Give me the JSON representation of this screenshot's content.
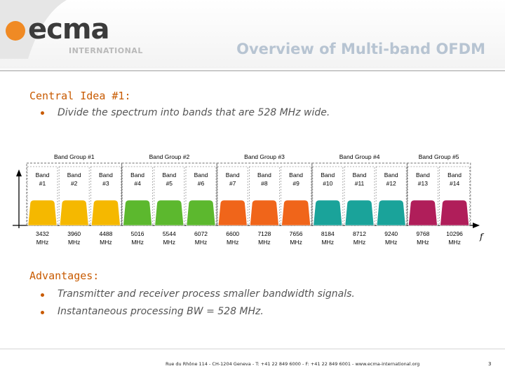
{
  "header": {
    "logo_text": "ecma",
    "logo_subtitle": "INTERNATIONAL",
    "title": "Overview of Multi-band OFDM"
  },
  "section1": {
    "heading": "Central Idea #1:",
    "bullets": [
      "Divide the spectrum into bands that are 528 MHz wide."
    ]
  },
  "figure": {
    "band_groups": [
      "Band Group #1",
      "Band Group #2",
      "Band Group #3",
      "Band Group #4",
      "Band Group #5"
    ],
    "bands": [
      {
        "name": "Band",
        "num": "#1",
        "freq": "3432",
        "unit": "MHz",
        "color": "#f5b800"
      },
      {
        "name": "Band",
        "num": "#2",
        "freq": "3960",
        "unit": "MHz",
        "color": "#f5b800"
      },
      {
        "name": "Band",
        "num": "#3",
        "freq": "4488",
        "unit": "MHz",
        "color": "#f5b800"
      },
      {
        "name": "Band",
        "num": "#4",
        "freq": "5016",
        "unit": "MHz",
        "color": "#5cb82e"
      },
      {
        "name": "Band",
        "num": "#5",
        "freq": "5544",
        "unit": "MHz",
        "color": "#5cb82e"
      },
      {
        "name": "Band",
        "num": "#6",
        "freq": "6072",
        "unit": "MHz",
        "color": "#5cb82e"
      },
      {
        "name": "Band",
        "num": "#7",
        "freq": "6600",
        "unit": "MHz",
        "color": "#f0651a"
      },
      {
        "name": "Band",
        "num": "#8",
        "freq": "7128",
        "unit": "MHz",
        "color": "#f0651a"
      },
      {
        "name": "Band",
        "num": "#9",
        "freq": "7656",
        "unit": "MHz",
        "color": "#f0651a"
      },
      {
        "name": "Band",
        "num": "#10",
        "freq": "8184",
        "unit": "MHz",
        "color": "#1aa39a"
      },
      {
        "name": "Band",
        "num": "#11",
        "freq": "8712",
        "unit": "MHz",
        "color": "#1aa39a"
      },
      {
        "name": "Band",
        "num": "#12",
        "freq": "9240",
        "unit": "MHz",
        "color": "#1aa39a"
      },
      {
        "name": "Band",
        "num": "#13",
        "freq": "9768",
        "unit": "MHz",
        "color": "#b01e5a"
      },
      {
        "name": "Band",
        "num": "#14",
        "freq": "10296",
        "unit": "MHz",
        "color": "#b01e5a"
      }
    ],
    "axis_label": "f"
  },
  "section2": {
    "heading": "Advantages:",
    "bullets": [
      "Transmitter and receiver process smaller bandwidth signals.",
      "Instantaneous processing BW = 528 MHz."
    ]
  },
  "footer": {
    "text": "Rue du Rhône 114 - CH-1204 Geneva - T: +41 22 849 6000 - F: +41 22 849 6001 - www.ecma-international.org",
    "page": "3"
  },
  "colors": {
    "accent": "#c85a00",
    "title": "#b7c4d2"
  }
}
